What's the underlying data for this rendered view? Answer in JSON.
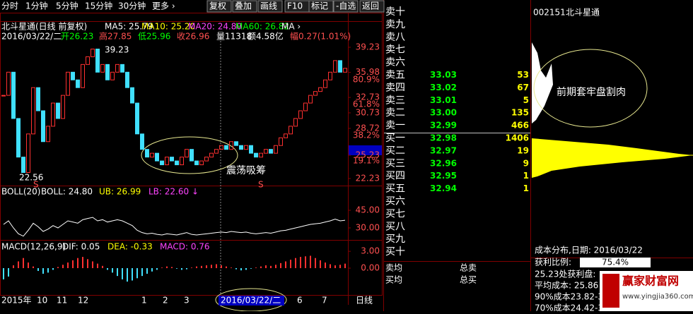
{
  "toolbar": {
    "periods": [
      "分时",
      "1分钟",
      "5分钟",
      "15分钟",
      "30分钟",
      "更多 ›"
    ],
    "buttons": [
      "复权",
      "叠加",
      "画线",
      "F10",
      "标记",
      "-自选",
      "返回"
    ]
  },
  "chart": {
    "title": "北斗星通(日线 前复权)",
    "ma": [
      "MA5: 25.79",
      "MA10: 25.20",
      "MA20: 24.80",
      "MA60: 26.82",
      "MA ›"
    ],
    "info": [
      "2016/03/22/二",
      "开26.23",
      "高27.85",
      "低25.96",
      "收26.96",
      "量11318",
      "额4.58亿",
      "幅0.27(1.01%)"
    ],
    "ylim": [
      21.4,
      40.05
    ],
    "yticks": [
      39.23,
      35.98,
      32.73,
      30.73,
      28.72,
      25.23,
      22.23
    ],
    "fib_labels": [
      "80.9%",
      "61.8%",
      "38.2%",
      "19.1%"
    ],
    "annotations": [
      "39.23",
      "22.56",
      "震荡吸筹",
      "S",
      "S"
    ],
    "closes": [
      33,
      36,
      30,
      25,
      23,
      28,
      34,
      31,
      27,
      29,
      32,
      30,
      33,
      36,
      35,
      34,
      37,
      38,
      39,
      36,
      37,
      35,
      36,
      37,
      36,
      34,
      32,
      28,
      26,
      25,
      25.5,
      24.5,
      24,
      25,
      24.5,
      24,
      25,
      26,
      24.5,
      24,
      24.5,
      25,
      25.5,
      26,
      26.5,
      26,
      27,
      26.5,
      26,
      26.5,
      25.5,
      25,
      25.5,
      26,
      25.5,
      26.5,
      27.5,
      28,
      29,
      30,
      31,
      32,
      33,
      33.5,
      34,
      35,
      36,
      37.5,
      36,
      36.5
    ]
  },
  "boll": {
    "label": "BOLL(20)",
    "values": [
      "BOLL: 24.80",
      "UB: 26.99",
      "LB: 22.60 ↓"
    ],
    "ylim": [
      19.8,
      64.8
    ],
    "yticks": [
      {
        "value": 45,
        "label": "45.00"
      },
      {
        "value": 30,
        "label": "30.00"
      }
    ]
  },
  "macd": {
    "label": "MACD(12,26,9)",
    "values": [
      "DIF: 0.05",
      "DEA: -0.33",
      "MACD: 0.76"
    ],
    "ylim": [
      -4.4,
      4.4
    ],
    "yticks": [
      {
        "value": 3,
        "label": "3.00"
      },
      {
        "value": 0,
        "label": "0.00"
      }
    ],
    "hist": [
      -2,
      -1.5,
      0.5,
      1.2,
      1.8,
      1,
      0.3,
      -0.5,
      -1,
      -0.8,
      -0.3,
      0.2,
      0.6,
      1,
      1.4,
      1.8,
      2,
      1.6,
      1.2,
      0.8,
      0.4,
      -0.3,
      -0.8,
      -1.4,
      -2,
      -2.4,
      -2.2,
      -1.8,
      -1.4,
      -1,
      -0.6,
      -0.3,
      0.1,
      0.3,
      0.2,
      -0.1,
      -0.3,
      -0.2,
      0.1,
      0.3,
      0.4,
      0.5,
      0.6,
      0.7,
      0.5,
      0.3,
      0.1,
      -0.2,
      -0.4,
      -0.3,
      -0.1,
      0.1,
      0.3,
      0.5,
      0.4,
      0.6,
      0.9,
      1.2,
      1.5,
      1.8,
      2,
      2.1,
      2.2,
      1.8,
      1.4,
      1,
      0.7,
      0.5,
      0.6,
      0.8
    ]
  },
  "time_axis": [
    "2015年",
    "10",
    "11",
    "12",
    "1",
    "2",
    "3",
    "2016/03/22/二",
    "6",
    "7",
    "日线"
  ],
  "order_book": {
    "rows": [
      {
        "label": "卖十"
      },
      {
        "label": "卖九"
      },
      {
        "label": "卖八"
      },
      {
        "label": "卖七"
      },
      {
        "label": "卖六"
      },
      {
        "label": "卖五",
        "price": "33.03",
        "volume": "53"
      },
      {
        "label": "卖四",
        "price": "33.02",
        "volume": "67"
      },
      {
        "label": "卖三",
        "price": "33.01",
        "volume": "5"
      },
      {
        "label": "卖二",
        "price": "33.00",
        "volume": "135"
      },
      {
        "label": "卖一",
        "price": "32.99",
        "volume": "466"
      },
      {
        "label": "买一",
        "price": "32.98",
        "volume": "1406"
      },
      {
        "label": "买二",
        "price": "32.97",
        "volume": "19"
      },
      {
        "label": "买三",
        "price": "32.96",
        "volume": "9"
      },
      {
        "label": "买四",
        "price": "32.95",
        "volume": "1"
      },
      {
        "label": "买五",
        "price": "32.94",
        "volume": "1"
      },
      {
        "label": "买六"
      },
      {
        "label": "买七"
      },
      {
        "label": "买八"
      },
      {
        "label": "买九"
      },
      {
        "label": "买十"
      }
    ],
    "summary": [
      "卖均",
      "总卖",
      "买均",
      "总买"
    ]
  },
  "cost_panel": {
    "code": "002151",
    "name": "北斗星通",
    "note": "前期套牢盘割肉",
    "title": "成本分布,日期: 2016/03/22",
    "profit_label": "获利比例:",
    "profit_value": "75.4%",
    "lines": [
      "25.23处获利盘:",
      "平均成本: 25.86",
      "90%成本23.82-3",
      "70%成本24.42-3"
    ]
  },
  "watermark": {
    "name": "赢家财富网",
    "url": "www.yingjia360.com"
  }
}
